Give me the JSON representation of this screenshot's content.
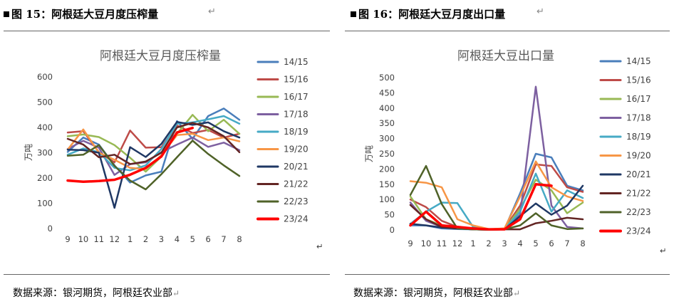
{
  "figures": [
    {
      "caption": "图 15：阿根廷大豆月度压榨量",
      "source": "数据来源：银河期货，阿根廷农业部",
      "chart_data": {
        "type": "line",
        "title": "阿根廷大豆月度压榨量",
        "ylabel": "万吨",
        "xlabel": "",
        "categories": [
          "9",
          "10",
          "11",
          "12",
          "1",
          "2",
          "3",
          "4",
          "5",
          "6",
          "7",
          "8"
        ],
        "ylim": [
          0,
          600
        ],
        "yticks": [
          0,
          100,
          200,
          300,
          400,
          500,
          600
        ],
        "grid": false,
        "legend": "right",
        "series": [
          {
            "name": "14/15",
            "color": "#4a7ebb",
            "width": 2.5,
            "values": [
              303,
              360,
              332,
              250,
              182,
              210,
              225,
              425,
              355,
              445,
              475,
              430
            ]
          },
          {
            "name": "15/16",
            "color": "#be4b48",
            "width": 2.5,
            "values": [
              380,
              385,
              302,
              262,
              388,
              320,
              322,
              408,
              378,
              390,
              360,
              375
            ]
          },
          {
            "name": "16/17",
            "color": "#98b954",
            "width": 2.5,
            "values": [
              365,
              372,
              362,
              330,
              280,
              225,
              285,
              375,
              450,
              385,
              430,
              375
            ]
          },
          {
            "name": "17/18",
            "color": "#7d60a0",
            "width": 2.5,
            "values": [
              315,
              347,
              320,
              212,
              255,
              262,
              302,
              332,
              360,
              323,
              340,
              310
            ]
          },
          {
            "name": "18/19",
            "color": "#46aac5",
            "width": 2.5,
            "values": [
              292,
              317,
              302,
              240,
              230,
              250,
              315,
              415,
              420,
              432,
              445,
              415
            ]
          },
          {
            "name": "19/20",
            "color": "#f79646",
            "width": 2.5,
            "values": [
              312,
              392,
              300,
              272,
              240,
              235,
              290,
              370,
              375,
              350,
              360,
              345
            ]
          },
          {
            "name": "20/21",
            "color": "#1f3864",
            "width": 2.5,
            "values": [
              312,
              310,
              300,
              82,
              322,
              283,
              335,
              422,
              410,
              420,
              385,
              360
            ]
          },
          {
            "name": "21/22",
            "color": "#632523",
            "width": 2.5,
            "values": [
              355,
              332,
              282,
              292,
              255,
              265,
              300,
              400,
              418,
              400,
              365,
              302
            ]
          },
          {
            "name": "22/23",
            "color": "#4f6228",
            "width": 2.5,
            "values": [
              288,
              292,
              330,
              248,
              190,
              155,
              215,
              282,
              348,
              295,
              250,
              208
            ]
          },
          {
            "name": "23/24",
            "color": "#ff0000",
            "width": 3.5,
            "values": [
              190,
              185,
              188,
              193,
              213,
              240,
              285,
              380,
              398,
              null,
              null,
              null
            ]
          }
        ]
      }
    },
    {
      "caption": "图 16：阿根廷大豆月度出口量",
      "source": "数据来源：银河期货，阿根廷农业部",
      "chart_data": {
        "type": "line",
        "title": "阿根廷大豆出口量",
        "ylabel": "万吨",
        "xlabel": "",
        "categories": [
          "9",
          "10",
          "11",
          "12",
          "1",
          "2",
          "3",
          "4",
          "5",
          "6",
          "7",
          "8"
        ],
        "ylim": [
          0,
          500
        ],
        "yticks": [
          0,
          50,
          100,
          150,
          200,
          250,
          300,
          350,
          400,
          450,
          500
        ],
        "grid": false,
        "legend": "right",
        "series": [
          {
            "name": "14/15",
            "color": "#4a7ebb",
            "width": 2.5,
            "values": [
              15,
              15,
              5,
              3,
              2,
              1,
              2,
              120,
              250,
              238,
              145,
              130
            ]
          },
          {
            "name": "15/16",
            "color": "#be4b48",
            "width": 2.5,
            "values": [
              100,
              75,
              30,
              10,
              3,
              2,
              5,
              80,
              215,
              210,
              140,
              125
            ]
          },
          {
            "name": "16/17",
            "color": "#98b954",
            "width": 2.5,
            "values": [
              110,
              35,
              15,
              8,
              2,
              1,
              2,
              70,
              165,
              130,
              55,
              90
            ]
          },
          {
            "name": "17/18",
            "color": "#7d60a0",
            "width": 2.5,
            "values": [
              90,
              30,
              10,
              5,
              2,
              1,
              2,
              50,
              470,
              80,
              10,
              5
            ]
          },
          {
            "name": "18/19",
            "color": "#46aac5",
            "width": 2.5,
            "values": [
              20,
              60,
              90,
              88,
              10,
              2,
              2,
              60,
              185,
              60,
              130,
              105
            ]
          },
          {
            "name": "19/20",
            "color": "#f79646",
            "width": 2.5,
            "values": [
              160,
              155,
              140,
              35,
              15,
              3,
              5,
              110,
              225,
              140,
              110,
              95
            ]
          },
          {
            "name": "20/21",
            "color": "#1f3864",
            "width": 2.5,
            "values": [
              20,
              15,
              8,
              5,
              3,
              2,
              2,
              45,
              87,
              50,
              80,
              145
            ]
          },
          {
            "name": "21/22",
            "color": "#632523",
            "width": 2.5,
            "values": [
              82,
              35,
              10,
              5,
              2,
              1,
              2,
              2,
              22,
              30,
              40,
              35
            ]
          },
          {
            "name": "22/23",
            "color": "#4f6228",
            "width": 2.5,
            "values": [
              115,
              210,
              85,
              5,
              2,
              1,
              2,
              15,
              55,
              15,
              3,
              5
            ]
          },
          {
            "name": "23/24",
            "color": "#ff0000",
            "width": 3.5,
            "values": [
              15,
              60,
              15,
              10,
              5,
              2,
              2,
              35,
              150,
              145,
              null,
              null
            ]
          }
        ]
      }
    }
  ]
}
